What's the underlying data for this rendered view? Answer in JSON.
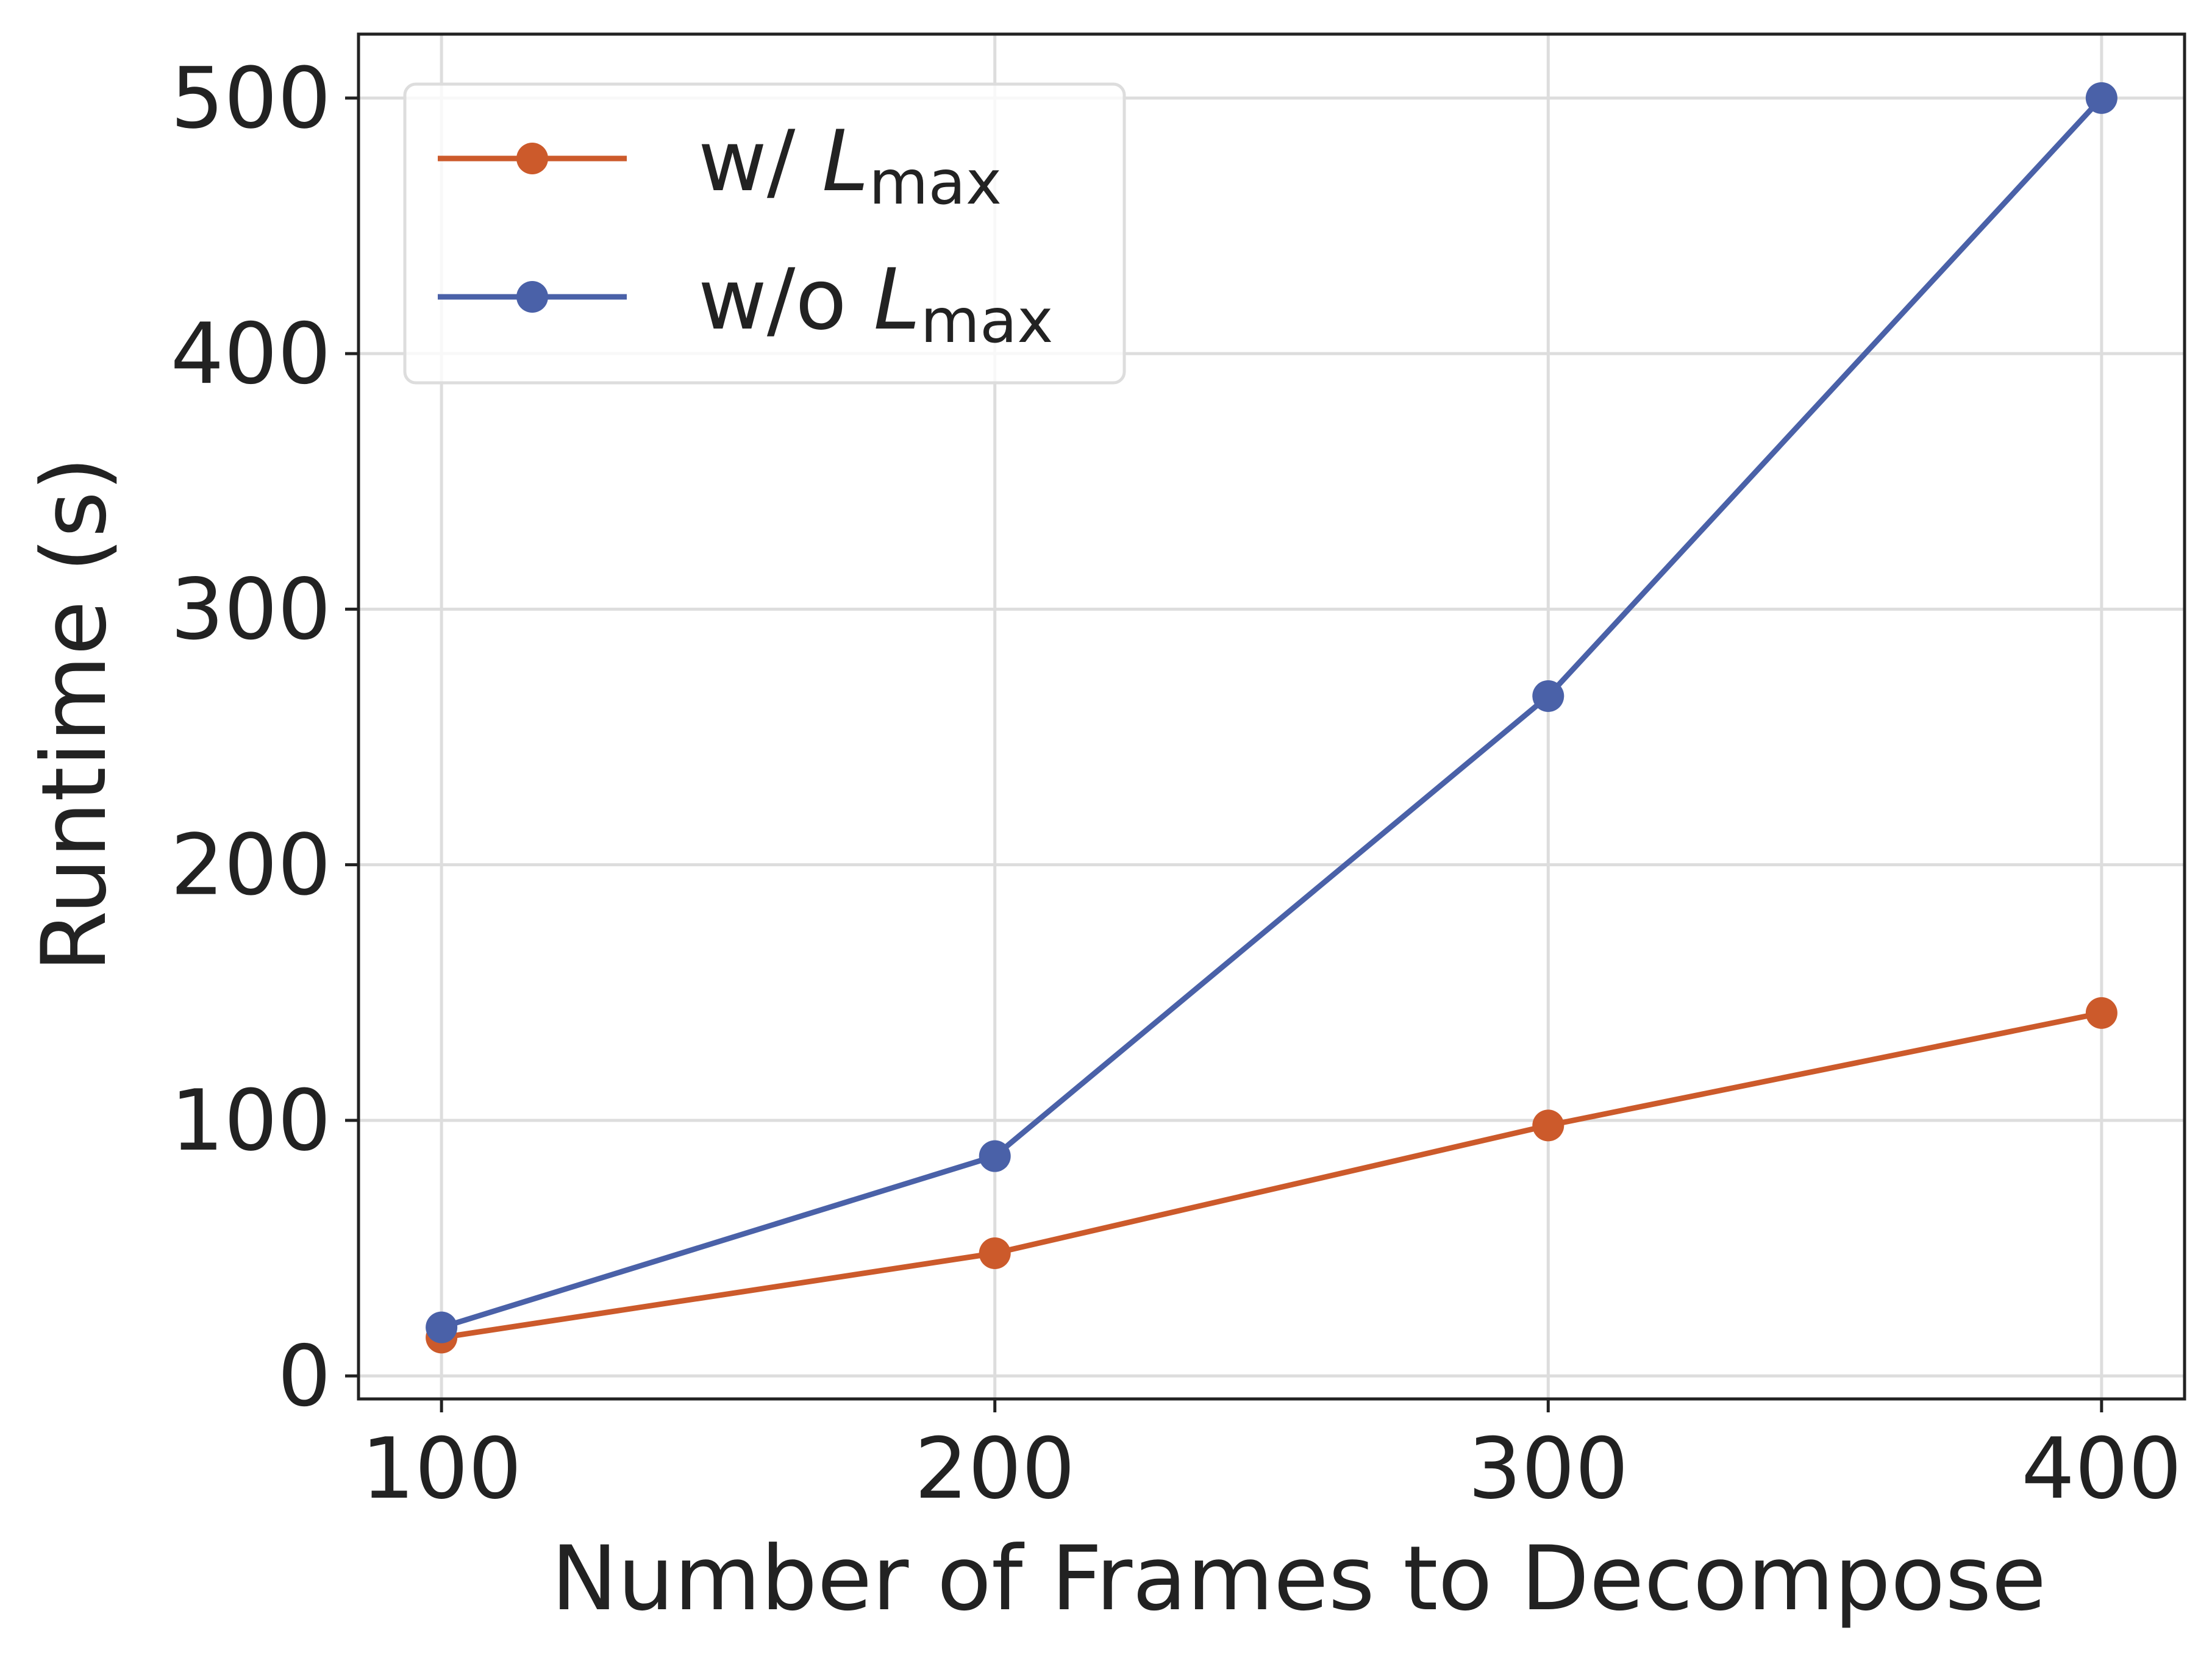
{
  "chart_data": {
    "type": "line",
    "title": "",
    "xlabel": "Number of Frames to Decompose",
    "ylabel": "Runtime (s)",
    "x": [
      100,
      200,
      300,
      400
    ],
    "xticks": [
      "100",
      "200",
      "300",
      "400"
    ],
    "yticks": [
      "0",
      "100",
      "200",
      "300",
      "400",
      "500"
    ],
    "xlim": [
      85,
      415
    ],
    "ylim": [
      -9,
      525
    ],
    "grid": true,
    "legend_position": "top-left",
    "series": [
      {
        "name": "w/ L_max",
        "label_main": "w/ ",
        "label_italic": "L",
        "label_sub": "max",
        "color": "#cc5a2b",
        "values": [
          15,
          48,
          98,
          142
        ]
      },
      {
        "name": "w/o L_max",
        "label_main": "w/o ",
        "label_italic": "L",
        "label_sub": "max",
        "color": "#4a61a8",
        "values": [
          19,
          86,
          266,
          500
        ]
      }
    ]
  }
}
